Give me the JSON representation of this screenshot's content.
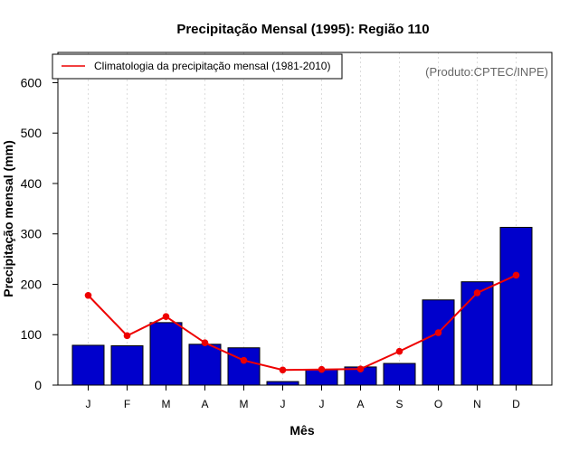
{
  "chart_data": {
    "type": "bar",
    "title": "Precipitação Mensal (1995): Região 110",
    "xlabel": "Mês",
    "ylabel": "Precipitação mensal (mm)",
    "credit": "(Produto:CPTEC/INPE)",
    "categories": [
      "J",
      "F",
      "M",
      "A",
      "M",
      "J",
      "J",
      "A",
      "S",
      "O",
      "N",
      "D"
    ],
    "ylim": [
      0,
      660
    ],
    "yticks": [
      0,
      100,
      200,
      300,
      400,
      500,
      600
    ],
    "grid": "vertical-dotted",
    "series": [
      {
        "name": "Precipitação mensal (1995)",
        "type": "bar",
        "color": "#0000cc",
        "values": [
          79,
          78,
          124,
          81,
          74,
          7,
          31,
          36,
          43,
          169,
          205,
          313
        ]
      },
      {
        "name": "Climatologia da precipitação mensal (1981-2010)",
        "type": "line",
        "color": "#ee0000",
        "values": [
          178,
          98,
          136,
          84,
          49,
          30,
          31,
          32,
          67,
          104,
          183,
          218
        ]
      }
    ],
    "legend": {
      "position": "top-left",
      "label": "Climatologia da precipitação mensal (1981-2010)"
    }
  }
}
